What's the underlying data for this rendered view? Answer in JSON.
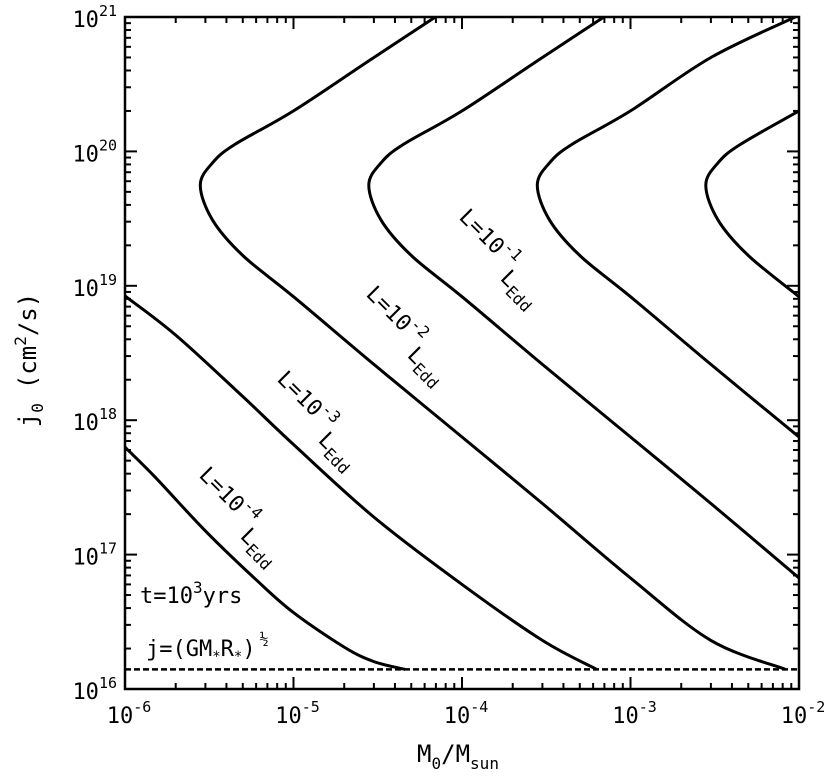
{
  "chart_data": {
    "type": "line",
    "xscale": "log",
    "yscale": "log",
    "xlim": [
      1e-06,
      0.01
    ],
    "ylim": [
      1e+16,
      1e+21
    ],
    "x_ticks": [
      {
        "base": "10",
        "exp": "-6",
        "value": 1e-06
      },
      {
        "base": "10",
        "exp": "-5",
        "value": 1e-05
      },
      {
        "base": "10",
        "exp": "-4",
        "value": 0.0001
      },
      {
        "base": "10",
        "exp": "-3",
        "value": 0.001
      },
      {
        "base": "10",
        "exp": "-2",
        "value": 0.01
      }
    ],
    "y_ticks": [
      {
        "base": "10",
        "exp": "16",
        "value": 1e+16
      },
      {
        "base": "10",
        "exp": "17",
        "value": 1e+17
      },
      {
        "base": "10",
        "exp": "18",
        "value": 1e+18
      },
      {
        "base": "10",
        "exp": "19",
        "value": 1e+19
      },
      {
        "base": "10",
        "exp": "20",
        "value": 1e+20
      },
      {
        "base": "10",
        "exp": "21",
        "value": 1e+21
      }
    ],
    "xlabel": {
      "main": "M",
      "sub1": "0",
      "slash": "/M",
      "sub2": "sun"
    },
    "ylabel": {
      "main": "j",
      "sub": "0",
      "units_a": "(cm",
      "sup": "2",
      "units_b": "/s)"
    },
    "annotations": {
      "time": {
        "main": "t=10",
        "sup": "3",
        "tail": "yrs"
      },
      "jmin": {
        "main": "j=(GM",
        "star1": "*",
        "mid": "R",
        "star2": "*",
        "close": ")",
        "sup": "½"
      }
    },
    "grid": false,
    "series": [
      {
        "name": "L=10^-4 L_Edd",
        "label": {
          "base": "L=10",
          "exp": "-4",
          "sub_base": "L",
          "sub": "Edd"
        },
        "lower_branch": [
          [
            1e-06,
            6.3e+17
          ],
          [
            1.5e-06,
            3.8e+17
          ],
          [
            3e-06,
            1.5e+17
          ],
          [
            6e-06,
            6.5e+16
          ],
          [
            1e-05,
            3.7e+16
          ],
          [
            2e-05,
            2.05e+16
          ],
          [
            3e-05,
            1.6e+16
          ],
          [
            4.6e-05,
            1.4e+16
          ]
        ],
        "upper_branch": []
      },
      {
        "name": "L=10^-3 L_Edd",
        "label": {
          "base": "L=10",
          "exp": "-3",
          "sub_base": "L",
          "sub": "Edd"
        },
        "lower_branch": [
          [
            1e-06,
            8.4e+18
          ],
          [
            2e-06,
            4.3e+18
          ],
          [
            5e-06,
            1.5e+18
          ],
          [
            1e-05,
            6.6e+17
          ],
          [
            3e-05,
            1.9e+17
          ],
          [
            0.0001,
            6e+16
          ],
          [
            0.0003,
            2.3e+16
          ],
          [
            0.00063,
            1.4e+16
          ]
        ],
        "upper_branch": []
      },
      {
        "name": "L=10^-2 L_Edd",
        "label": {
          "base": "L=10",
          "exp": "-2",
          "sub_base": "L",
          "sub": "Edd"
        },
        "lower_branch": [
          [
            2.8e-06,
            5.6e+19
          ],
          [
            3.3e-06,
            3.1e+19
          ],
          [
            5e-06,
            1.68e+19
          ],
          [
            1e-05,
            8.3e+18
          ],
          [
            3e-05,
            2.6e+18
          ],
          [
            0.0001,
            7.5e+17
          ],
          [
            0.0003,
            2.4e+17
          ],
          [
            0.001,
            6.7e+16
          ],
          [
            0.003,
            2.3e+16
          ],
          [
            0.0083,
            1.4e+16
          ]
        ],
        "upper_branch": [
          [
            2.8e-06,
            5.6e+19
          ],
          [
            3.3e-06,
            8.2e+19
          ],
          [
            4.5e-06,
            1.13e+20
          ],
          [
            1e-05,
            2e+20
          ],
          [
            3e-05,
            5e+20
          ],
          [
            0.0001,
            1.35e+21
          ],
          [
            0.00023,
            2.7e+21
          ]
        ]
      },
      {
        "name": "L=10^-1 L_Edd",
        "label": {
          "base": "L=10",
          "exp": "-1",
          "sub_base": "L",
          "sub": "Edd"
        },
        "lower_branch": [
          [
            2.8e-05,
            5.6e+19
          ],
          [
            3.3e-05,
            3.1e+19
          ],
          [
            5e-05,
            1.68e+19
          ],
          [
            0.0001,
            8.3e+18
          ],
          [
            0.0003,
            2.6e+18
          ],
          [
            0.001,
            7.5e+17
          ],
          [
            0.003,
            2.4e+17
          ],
          [
            0.01,
            6.7e+16
          ]
        ],
        "upper_branch": [
          [
            2.8e-05,
            5.6e+19
          ],
          [
            3.3e-05,
            8.2e+19
          ],
          [
            4.5e-05,
            1.13e+20
          ],
          [
            0.0001,
            2e+20
          ],
          [
            0.0003,
            5e+20
          ],
          [
            0.001,
            1.35e+21
          ],
          [
            0.0023,
            2.7e+21
          ]
        ]
      },
      {
        "name": "unlabeled curve 5",
        "label": null,
        "lower_branch": [
          [
            0.00028,
            5.6e+19
          ],
          [
            0.00033,
            3.1e+19
          ],
          [
            0.0005,
            1.68e+19
          ],
          [
            0.001,
            8.3e+18
          ],
          [
            0.003,
            2.6e+18
          ],
          [
            0.01,
            7.5e+17
          ]
        ],
        "upper_branch": [
          [
            0.00028,
            5.6e+19
          ],
          [
            0.00033,
            8.2e+19
          ],
          [
            0.00045,
            1.13e+20
          ],
          [
            0.001,
            2e+20
          ],
          [
            0.003,
            5e+20
          ],
          [
            0.0095,
            1e+21
          ]
        ]
      },
      {
        "name": "unlabeled curve 6",
        "label": null,
        "lower_branch": [
          [
            0.0028,
            5.6e+19
          ],
          [
            0.0033,
            3.1e+19
          ],
          [
            0.005,
            1.68e+19
          ],
          [
            0.01,
            8.3e+18
          ]
        ],
        "upper_branch": [
          [
            0.0028,
            5.6e+19
          ],
          [
            0.0033,
            8.2e+19
          ],
          [
            0.0045,
            1.13e+20
          ],
          [
            0.01,
            2e+20
          ]
        ]
      }
    ],
    "dashed_line": {
      "y": 1.4e+16,
      "x_range": [
        1e-06,
        0.01
      ]
    }
  }
}
